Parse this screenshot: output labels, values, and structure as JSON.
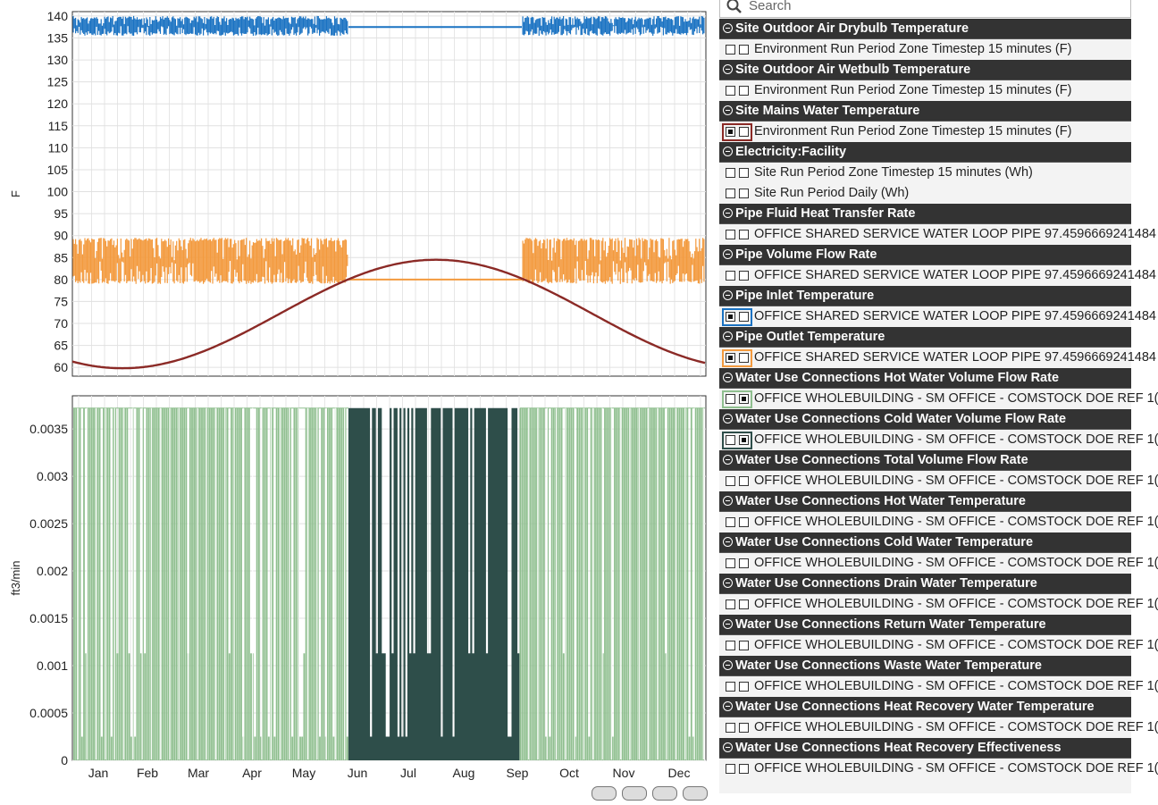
{
  "search": {
    "placeholder": "Search",
    "icon": "search-icon"
  },
  "chart_data": [
    {
      "type": "line",
      "ylabel": "F",
      "ylim": [
        58,
        141
      ],
      "y_ticks": [
        140,
        135,
        130,
        125,
        120,
        115,
        110,
        105,
        100,
        95,
        90,
        85,
        80,
        75,
        70,
        65,
        60
      ],
      "x_ticks": [
        "Jan",
        "Feb",
        "Mar",
        "Apr",
        "May",
        "Jun",
        "Jul",
        "Aug",
        "Sep",
        "Oct",
        "Nov",
        "Dec"
      ],
      "grid": true,
      "series": [
        {
          "color": "#1a72c2",
          "high": 140,
          "low": 135.5,
          "flat_value": 137.5,
          "flat_period": [
            "Jun",
            "Sep"
          ]
        },
        {
          "color": "#f39a3e",
          "high": 89.5,
          "low": 79,
          "flat_value": 80,
          "flat_period": [
            "Jun",
            "Sep"
          ]
        },
        {
          "color": "#8b2a26",
          "min": 59.8,
          "max": 84.5,
          "min_month": "Jan",
          "max_month": "Jul"
        }
      ]
    },
    {
      "type": "area",
      "ylabel": "ft3/min",
      "ylim": [
        0,
        0.0037
      ],
      "y_ticks": [
        "0.0035",
        "0.003",
        "0.0025",
        "0.002",
        "0.0015",
        "0.001",
        "0.0005",
        "0"
      ],
      "x_ticks": [
        "Jan",
        "Feb",
        "Mar",
        "Apr",
        "May",
        "Jun",
        "Jul",
        "Aug",
        "Sep",
        "Oct",
        "Nov",
        "Dec"
      ],
      "grid": true,
      "series": [
        {
          "color": "#8fbf8f",
          "peak": 0.00372
        },
        {
          "color": "#2e4e4a",
          "peak": 0.00372,
          "period": [
            "Jun",
            "Aug"
          ]
        }
      ]
    }
  ],
  "panel": {
    "groups": [
      {
        "header": "Site Outdoor Air Drybulb Temperature",
        "rows": [
          {
            "text": "Environment Run Period Zone Timestep 15 minutes (F)",
            "c1": false,
            "c2": false,
            "sel": ""
          }
        ]
      },
      {
        "header": "Site Outdoor Air Wetbulb Temperature",
        "rows": [
          {
            "text": "Environment Run Period Zone Timestep 15 minutes (F)",
            "c1": false,
            "c2": false,
            "sel": ""
          }
        ]
      },
      {
        "header": "Site Mains Water Temperature",
        "rows": [
          {
            "text": "Environment Run Period Zone Timestep 15 minutes (F)",
            "c1": true,
            "c2": false,
            "sel": "#8b2a26"
          }
        ]
      },
      {
        "header": "Electricity:Facility",
        "rows": [
          {
            "text": "Site Run Period Zone Timestep 15 minutes (Wh)",
            "c1": false,
            "c2": false,
            "sel": ""
          },
          {
            "text": "Site Run Period Daily (Wh)",
            "c1": false,
            "c2": false,
            "sel": ""
          }
        ]
      },
      {
        "header": "Pipe Fluid Heat Transfer Rate",
        "rows": [
          {
            "text": "OFFICE SHARED SERVICE WATER LOOP PIPE 97.4596669241484",
            "c1": false,
            "c2": false,
            "sel": ""
          }
        ]
      },
      {
        "header": "Pipe Volume Flow Rate",
        "rows": [
          {
            "text": "OFFICE SHARED SERVICE WATER LOOP PIPE 97.4596669241484",
            "c1": false,
            "c2": false,
            "sel": ""
          }
        ]
      },
      {
        "header": "Pipe Inlet Temperature",
        "rows": [
          {
            "text": "OFFICE SHARED SERVICE WATER LOOP PIPE 97.4596669241484",
            "c1": true,
            "c2": false,
            "sel": "#1a72c2"
          }
        ]
      },
      {
        "header": "Pipe Outlet Temperature",
        "rows": [
          {
            "text": "OFFICE SHARED SERVICE WATER LOOP PIPE 97.4596669241484",
            "c1": true,
            "c2": false,
            "sel": "#f39a3e"
          }
        ]
      },
      {
        "header": "Water Use Connections Hot Water Volume Flow Rate",
        "rows": [
          {
            "text": "OFFICE WHOLEBUILDING - SM OFFICE - COMSTOCK DOE REF 1(",
            "c1": false,
            "c2": true,
            "sel": "#8fbf8f"
          }
        ]
      },
      {
        "header": "Water Use Connections Cold Water Volume Flow Rate",
        "rows": [
          {
            "text": "OFFICE WHOLEBUILDING - SM OFFICE - COMSTOCK DOE REF 1(",
            "c1": false,
            "c2": true,
            "sel": "#2e4e4a"
          }
        ]
      },
      {
        "header": "Water Use Connections Total Volume Flow Rate",
        "rows": [
          {
            "text": "OFFICE WHOLEBUILDING - SM OFFICE - COMSTOCK DOE REF 1(",
            "c1": false,
            "c2": false,
            "sel": ""
          }
        ]
      },
      {
        "header": "Water Use Connections Hot Water Temperature",
        "rows": [
          {
            "text": "OFFICE WHOLEBUILDING - SM OFFICE - COMSTOCK DOE REF 1(",
            "c1": false,
            "c2": false,
            "sel": ""
          }
        ]
      },
      {
        "header": "Water Use Connections Cold Water Temperature",
        "rows": [
          {
            "text": "OFFICE WHOLEBUILDING - SM OFFICE - COMSTOCK DOE REF 1(",
            "c1": false,
            "c2": false,
            "sel": ""
          }
        ]
      },
      {
        "header": "Water Use Connections Drain Water Temperature",
        "rows": [
          {
            "text": "OFFICE WHOLEBUILDING - SM OFFICE - COMSTOCK DOE REF 1(",
            "c1": false,
            "c2": false,
            "sel": ""
          }
        ]
      },
      {
        "header": "Water Use Connections Return Water Temperature",
        "rows": [
          {
            "text": "OFFICE WHOLEBUILDING - SM OFFICE - COMSTOCK DOE REF 1(",
            "c1": false,
            "c2": false,
            "sel": ""
          }
        ]
      },
      {
        "header": "Water Use Connections Waste Water Temperature",
        "rows": [
          {
            "text": "OFFICE WHOLEBUILDING - SM OFFICE - COMSTOCK DOE REF 1(",
            "c1": false,
            "c2": false,
            "sel": ""
          }
        ]
      },
      {
        "header": "Water Use Connections Heat Recovery Water Temperature",
        "rows": [
          {
            "text": "OFFICE WHOLEBUILDING - SM OFFICE - COMSTOCK DOE REF 1(",
            "c1": false,
            "c2": false,
            "sel": ""
          }
        ]
      },
      {
        "header": "Water Use Connections Heat Recovery Effectiveness",
        "rows": [
          {
            "text": "OFFICE WHOLEBUILDING - SM OFFICE - COMSTOCK DOE REF 1(",
            "c1": false,
            "c2": false,
            "sel": ""
          }
        ]
      }
    ]
  }
}
